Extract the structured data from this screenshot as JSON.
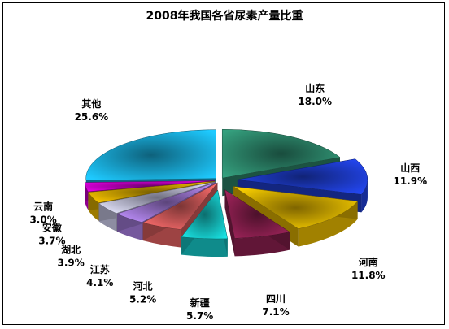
{
  "chart_data": {
    "type": "pie",
    "title": "2008年我国各省尿素产量比重",
    "slices": [
      {
        "name": "山东",
        "value": 18.0,
        "label": "18.0%",
        "color": "#2e8b6e",
        "exploded": false
      },
      {
        "name": "山西",
        "value": 11.9,
        "label": "11.9%",
        "color": "#1f3fd6",
        "exploded": true
      },
      {
        "name": "河南",
        "value": 11.8,
        "label": "11.8%",
        "color": "#e6b800",
        "exploded": true
      },
      {
        "name": "四川",
        "value": 7.1,
        "label": "7.1%",
        "color": "#8b1f4f",
        "exploded": true
      },
      {
        "name": "新疆",
        "value": 5.7,
        "label": "5.7%",
        "color": "#16c7c7",
        "exploded": true
      },
      {
        "name": "河北",
        "value": 5.2,
        "label": "5.2%",
        "color": "#e06060",
        "exploded": false
      },
      {
        "name": "江苏",
        "value": 4.1,
        "label": "4.1%",
        "color": "#a77ee0",
        "exploded": false
      },
      {
        "name": "湖北",
        "value": 3.9,
        "label": "3.9%",
        "color": "#c9c9e8",
        "exploded": false
      },
      {
        "name": "安徽",
        "value": 3.7,
        "label": "3.7%",
        "color": "#e0b000",
        "exploded": false
      },
      {
        "name": "云南",
        "value": 3.0,
        "label": "3.0%",
        "color": "#cc00cc",
        "exploded": false
      },
      {
        "name": "其他",
        "value": 25.6,
        "label": "25.6%",
        "color": "#1ab0e0",
        "exploded": false
      }
    ]
  }
}
